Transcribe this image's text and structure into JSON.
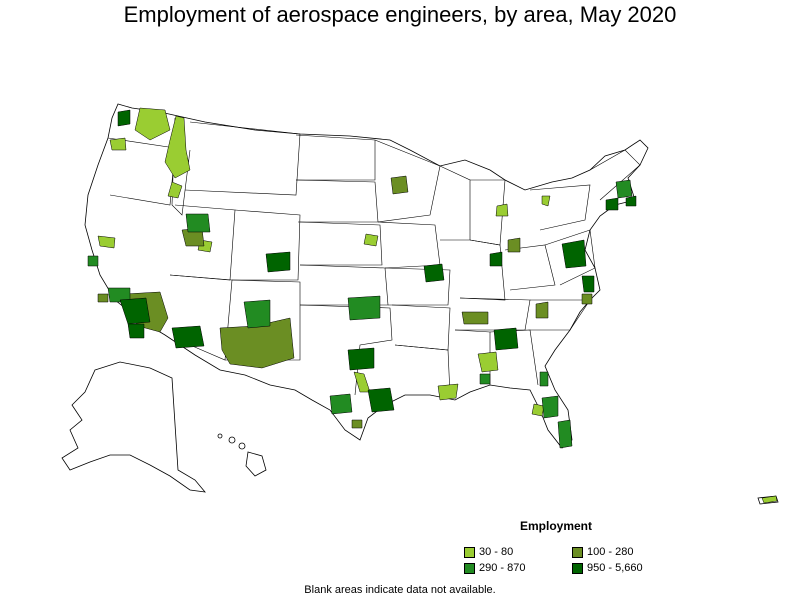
{
  "title": "Employment of aerospace engineers, by area, May 2020",
  "legend": {
    "title": "Employment",
    "items": [
      {
        "label": "30 - 80",
        "color": "#9acd32"
      },
      {
        "label": "100 - 280",
        "color": "#6b8e23"
      },
      {
        "label": "290 - 870",
        "color": "#228b22"
      },
      {
        "label": "950 - 5,660",
        "color": "#006400"
      }
    ]
  },
  "note": "Blank areas indicate data not available."
}
